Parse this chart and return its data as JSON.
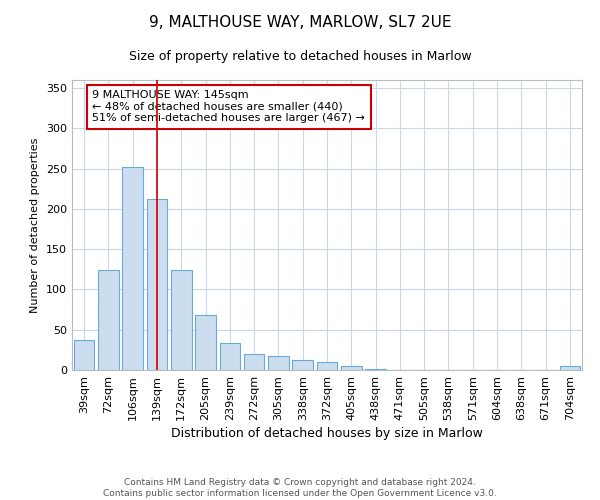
{
  "title": "9, MALTHOUSE WAY, MARLOW, SL7 2UE",
  "subtitle": "Size of property relative to detached houses in Marlow",
  "xlabel": "Distribution of detached houses by size in Marlow",
  "ylabel": "Number of detached properties",
  "footer_line1": "Contains HM Land Registry data © Crown copyright and database right 2024.",
  "footer_line2": "Contains public sector information licensed under the Open Government Licence v3.0.",
  "categories": [
    "39sqm",
    "72sqm",
    "106sqm",
    "139sqm",
    "172sqm",
    "205sqm",
    "239sqm",
    "272sqm",
    "305sqm",
    "338sqm",
    "372sqm",
    "405sqm",
    "438sqm",
    "471sqm",
    "505sqm",
    "538sqm",
    "571sqm",
    "604sqm",
    "638sqm",
    "671sqm",
    "704sqm"
  ],
  "values": [
    37,
    124,
    252,
    212,
    124,
    68,
    34,
    20,
    17,
    13,
    10,
    5,
    1,
    0,
    0,
    0,
    0,
    0,
    0,
    0,
    5
  ],
  "bar_color": "#ccddf0",
  "bar_edge_color": "#6aaad4",
  "highlight_index": 3,
  "highlight_line_color": "#cc0000",
  "annotation_text": "9 MALTHOUSE WAY: 145sqm\n← 48% of detached houses are smaller (440)\n51% of semi-detached houses are larger (467) →",
  "annotation_box_color": "#ffffff",
  "annotation_box_edge_color": "#cc0000",
  "ylim": [
    0,
    360
  ],
  "yticks": [
    0,
    50,
    100,
    150,
    200,
    250,
    300,
    350
  ],
  "background_color": "#ffffff",
  "grid_color": "#c8d8ea",
  "title_fontsize": 11,
  "subtitle_fontsize": 9,
  "xlabel_fontsize": 9,
  "ylabel_fontsize": 8,
  "tick_fontsize": 8,
  "annotation_fontsize": 8,
  "footer_fontsize": 6.5
}
